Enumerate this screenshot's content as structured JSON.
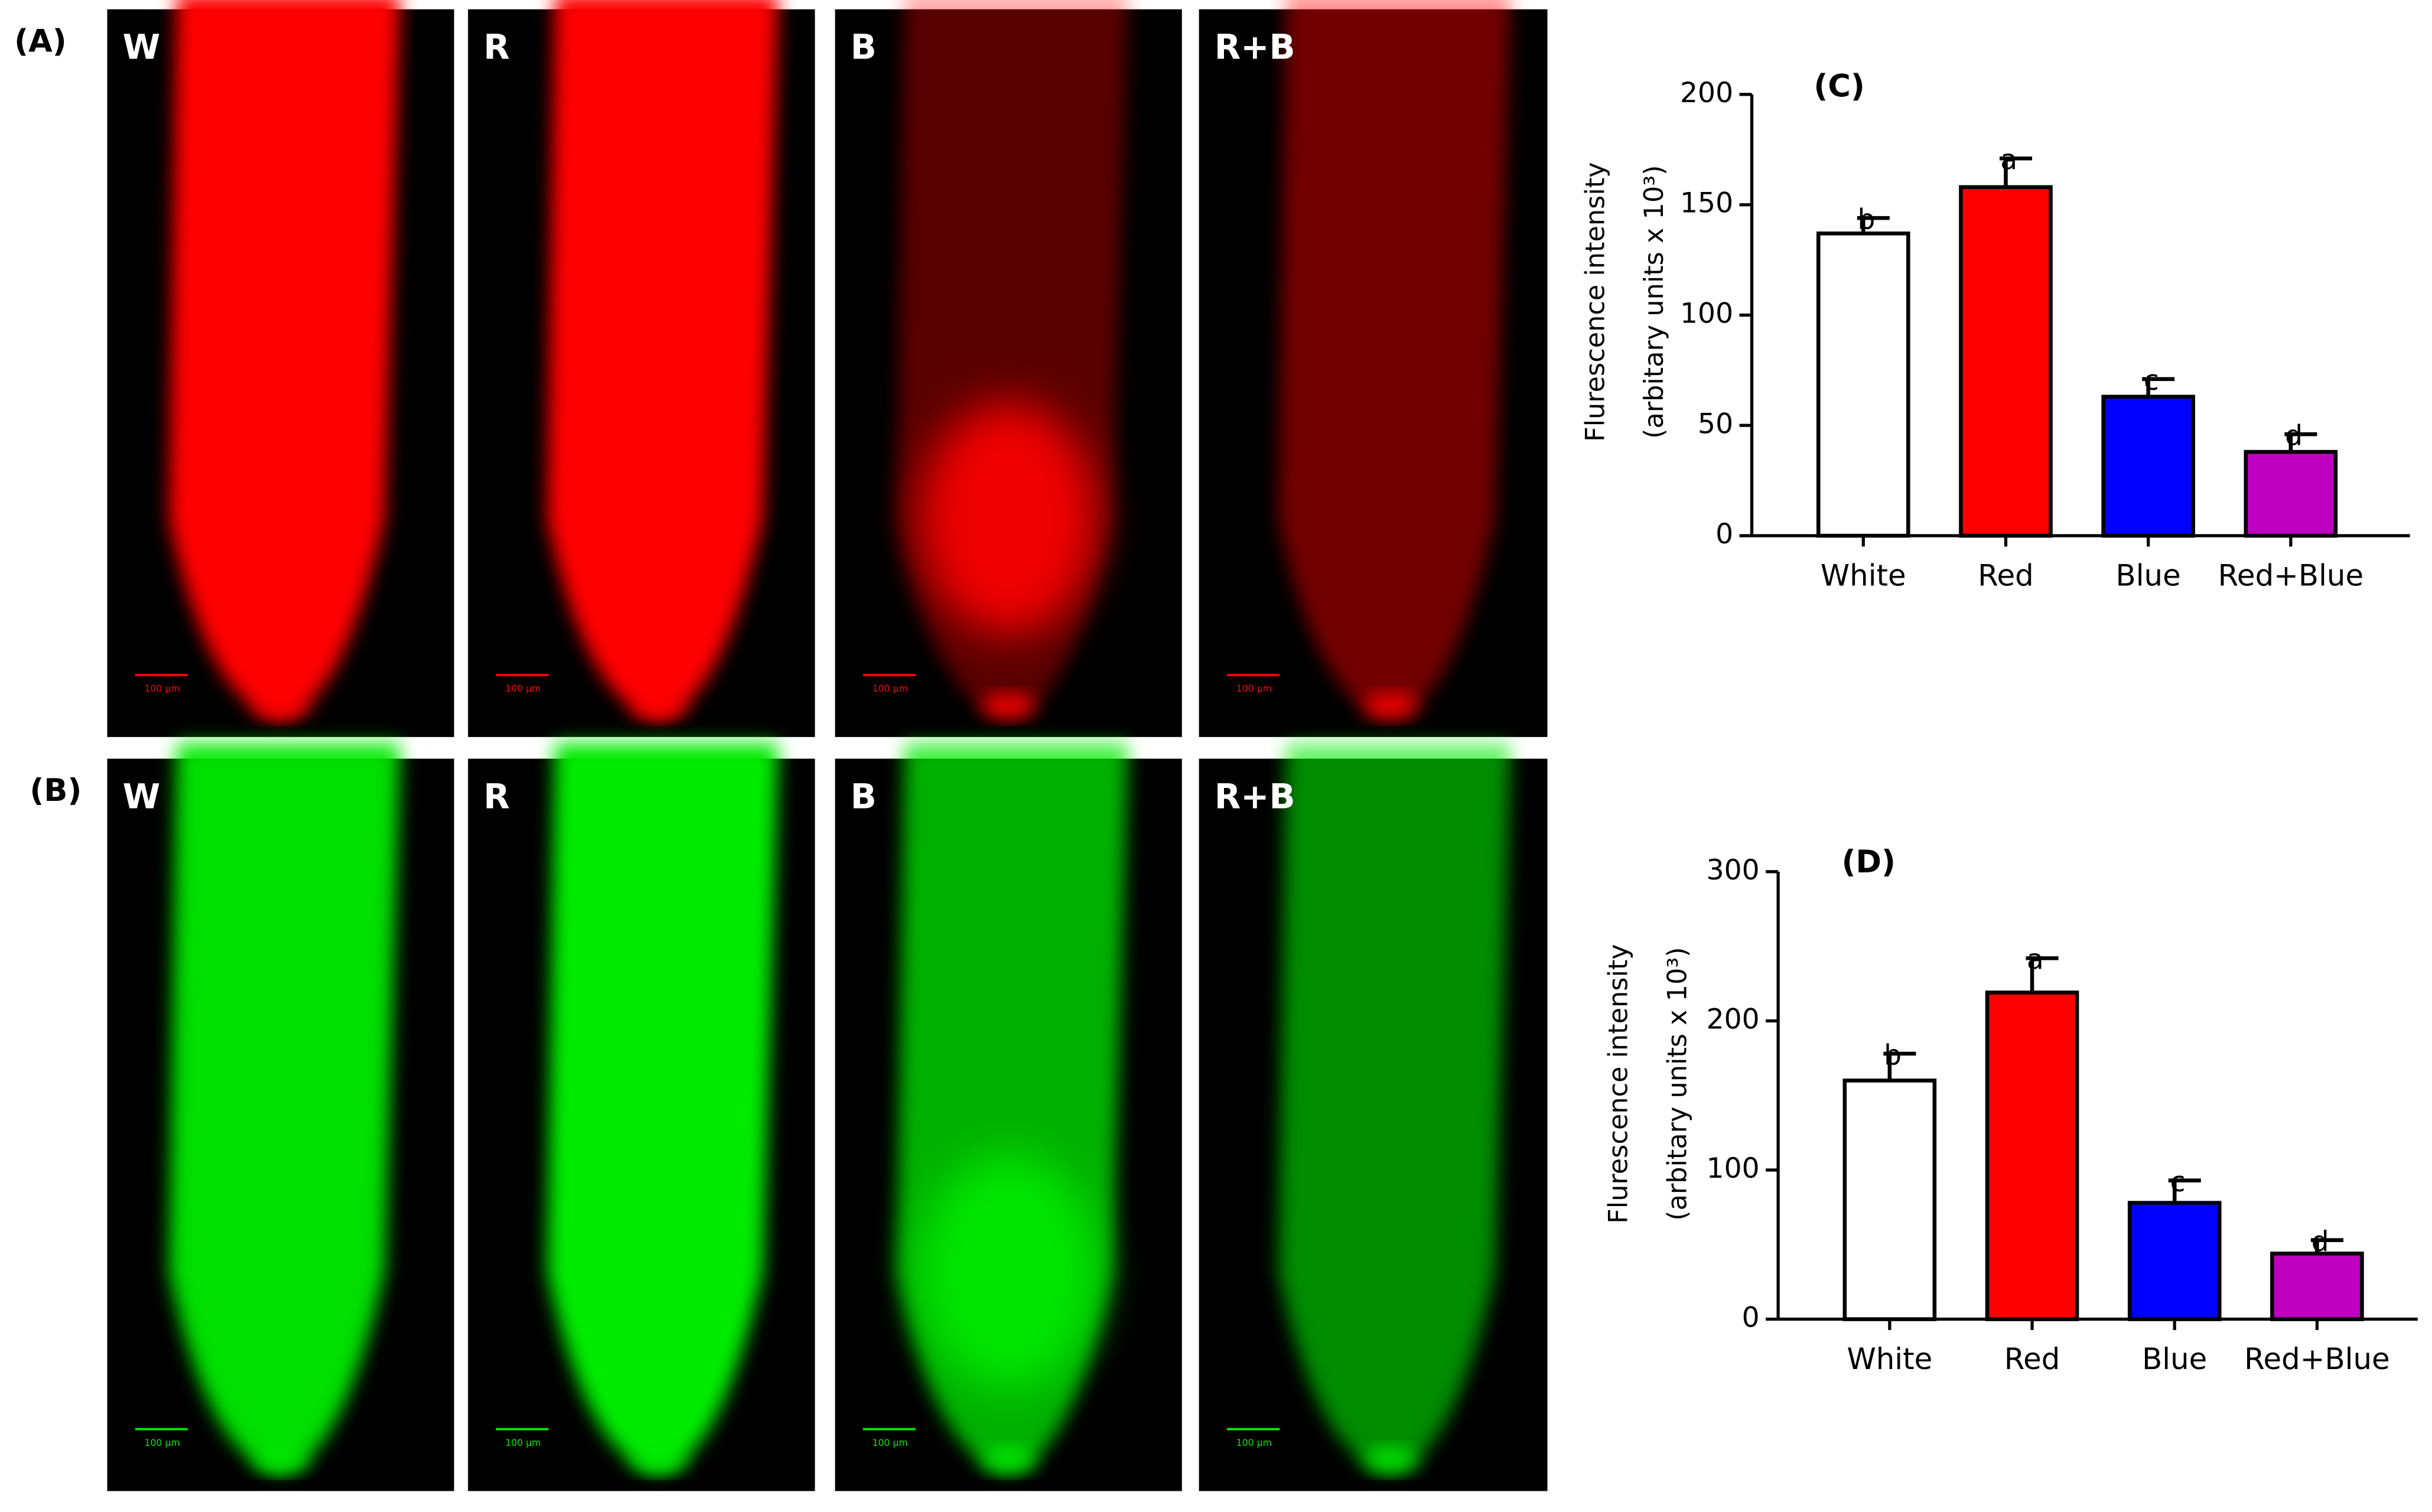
{
  "panels": [
    {
      "label": "(A)",
      "images": [
        "W",
        "R",
        "B",
        "R+B"
      ],
      "scale_bar": "100 µm"
    },
    {
      "label": "(B)",
      "images": [
        "W",
        "R",
        "B",
        "R+B"
      ],
      "scale_bar": "100 µm"
    }
  ],
  "chart_data": [
    {
      "type": "bar",
      "title": "(C)",
      "y_label": [
        "Flurescence intensity",
        "(arbitary units x 10³)"
      ],
      "categories": [
        "White",
        "Red",
        "Blue",
        "Red+Blue"
      ],
      "values": [
        137,
        158,
        63,
        38
      ],
      "errors": [
        7,
        13,
        8,
        8
      ],
      "annotations": [
        "b",
        "a",
        "c",
        "d"
      ],
      "colors": [
        "#ffffff",
        "#ff0000",
        "#0000ff",
        "#c000c0"
      ],
      "ylim": [
        0,
        200
      ],
      "yticks": [
        0,
        50,
        100,
        150,
        200
      ]
    },
    {
      "type": "bar",
      "title": "(D)",
      "y_label": [
        "Flurescence intensity",
        "(arbitary units x 10³)"
      ],
      "categories": [
        "White",
        "Red",
        "Blue",
        "Red+Blue"
      ],
      "values": [
        160,
        219,
        78,
        44
      ],
      "errors": [
        18,
        23,
        15,
        9
      ],
      "annotations": [
        "b",
        "a",
        "c",
        "d"
      ],
      "colors": [
        "#ffffff",
        "#ff0000",
        "#0000ff",
        "#c000c0"
      ],
      "ylim": [
        0,
        300
      ],
      "yticks": [
        0,
        100,
        200,
        300
      ]
    }
  ]
}
